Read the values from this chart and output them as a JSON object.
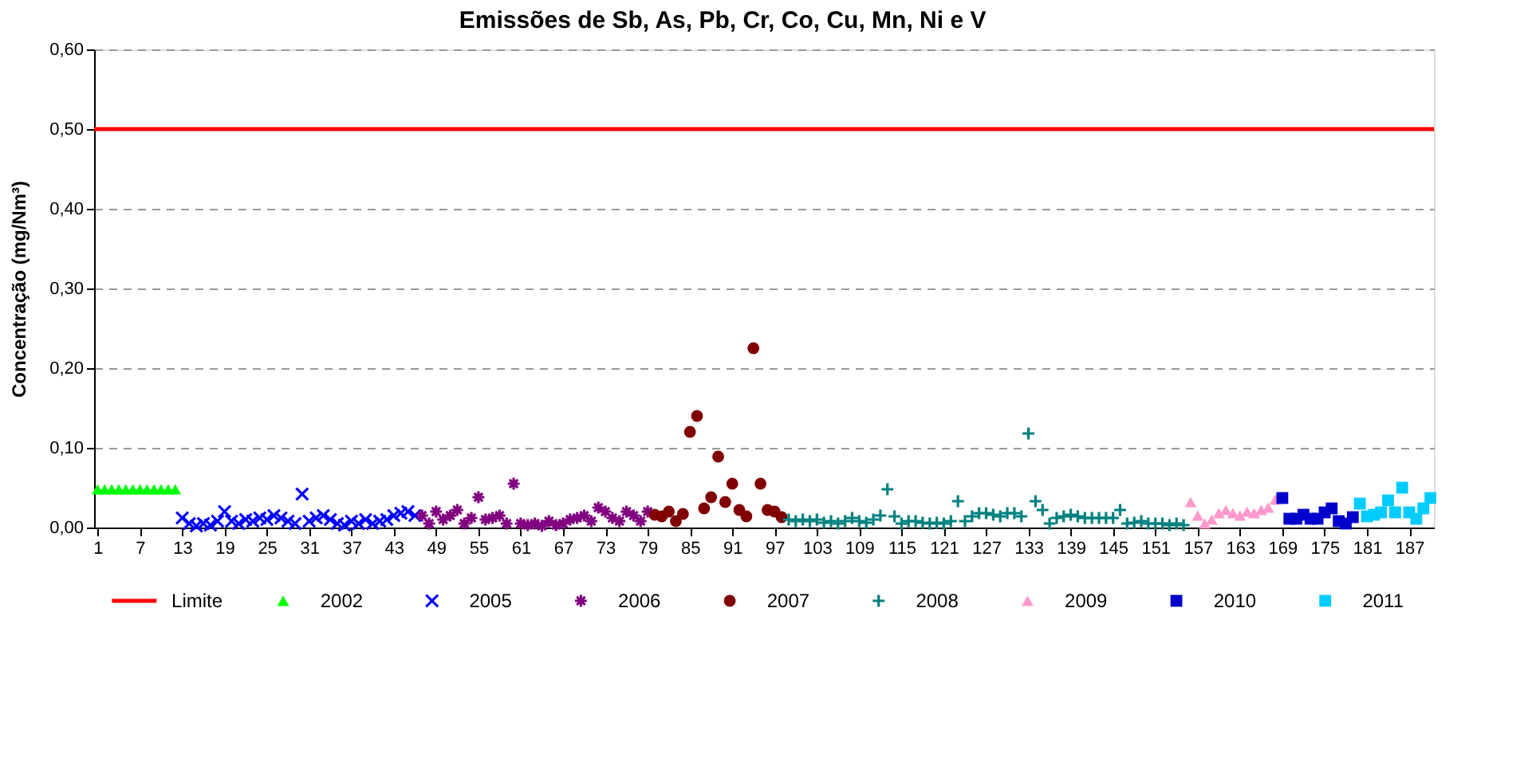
{
  "chart_data": {
    "type": "scatter",
    "title": "Emissões de Sb, As, Pb, Cr, Co, Cu, Mn, Ni e V",
    "ylabel": "Concentração (mg/Nm³)",
    "xlim": [
      0.5,
      190.5
    ],
    "xticks": [
      1,
      7,
      13,
      19,
      25,
      31,
      37,
      43,
      49,
      55,
      61,
      67,
      73,
      79,
      85,
      91,
      97,
      103,
      109,
      115,
      121,
      127,
      133,
      139,
      145,
      151,
      157,
      163,
      169,
      175,
      181,
      187
    ],
    "ylim": [
      0,
      0.6
    ],
    "yticks": [
      {
        "value": 0,
        "label": "0,00"
      },
      {
        "value": 0.1,
        "label": "0,10"
      },
      {
        "value": 0.2,
        "label": "0,20"
      },
      {
        "value": 0.3,
        "label": "0,30"
      },
      {
        "value": 0.4,
        "label": "0,40"
      },
      {
        "value": 0.5,
        "label": "0,50"
      },
      {
        "value": 0.6,
        "label": "0,60"
      }
    ],
    "grid": "y",
    "legend": "bottom",
    "series": [
      {
        "name": "Limite",
        "type": "line",
        "color": "#ff0000",
        "x": [
          0.5,
          190.5
        ],
        "values": [
          0.5,
          0.5
        ]
      },
      {
        "name": "2002",
        "color": "#00ff00",
        "marker": "triangle",
        "x": [
          1,
          2,
          3,
          4,
          5,
          6,
          7,
          8,
          9,
          10,
          11,
          12
        ],
        "values": [
          0.048,
          0.048,
          0.048,
          0.048,
          0.048,
          0.048,
          0.048,
          0.048,
          0.048,
          0.048,
          0.048,
          0.048
        ]
      },
      {
        "name": "2005",
        "color": "#0000ff",
        "marker": "x",
        "x": [
          13,
          14,
          15,
          16,
          17,
          18,
          19,
          20,
          21,
          22,
          23,
          24,
          25,
          26,
          27,
          28,
          29,
          30,
          31,
          32,
          33,
          34,
          35,
          36,
          37,
          38,
          39,
          40,
          41,
          42,
          43,
          44,
          45,
          46
        ],
        "values": [
          0.012,
          0.005,
          0.002,
          0.005,
          0.003,
          0.008,
          0.02,
          0.008,
          0.005,
          0.01,
          0.008,
          0.012,
          0.01,
          0.015,
          0.012,
          0.008,
          0.005,
          0.042,
          0.008,
          0.012,
          0.015,
          0.01,
          0.005,
          0.003,
          0.008,
          0.005,
          0.01,
          0.005,
          0.008,
          0.01,
          0.015,
          0.018,
          0.02,
          0.015
        ]
      },
      {
        "name": "2006",
        "color": "#800080",
        "marker": "cross",
        "x": [
          47,
          48,
          49,
          50,
          51,
          52,
          53,
          54,
          55,
          56,
          57,
          58,
          59,
          60,
          61,
          62,
          63,
          64,
          65,
          66,
          67,
          68,
          69,
          70,
          71,
          72,
          73,
          74,
          75,
          76,
          77,
          78,
          79
        ],
        "values": [
          0.015,
          0.005,
          0.02,
          0.01,
          0.015,
          0.022,
          0.005,
          0.012,
          0.038,
          0.01,
          0.012,
          0.015,
          0.005,
          0.055,
          0.005,
          0.003,
          0.005,
          0.002,
          0.008,
          0.003,
          0.005,
          0.01,
          0.012,
          0.015,
          0.008,
          0.025,
          0.02,
          0.012,
          0.008,
          0.02,
          0.015,
          0.008,
          0.02
        ]
      },
      {
        "name": "2007",
        "color": "#800000",
        "marker": "circle",
        "x": [
          80,
          81,
          82,
          83,
          84,
          85,
          86,
          87,
          88,
          89,
          90,
          91,
          92,
          93,
          94,
          95,
          96,
          97,
          98
        ],
        "values": [
          0.016,
          0.014,
          0.02,
          0.008,
          0.017,
          0.12,
          0.14,
          0.024,
          0.038,
          0.089,
          0.032,
          0.055,
          0.022,
          0.014,
          0.225,
          0.055,
          0.022,
          0.02,
          0.013
        ]
      },
      {
        "name": "2008",
        "color": "#008080",
        "marker": "plus",
        "x": [
          99,
          100,
          101,
          102,
          103,
          104,
          105,
          106,
          107,
          108,
          109,
          110,
          111,
          112,
          113,
          114,
          115,
          116,
          117,
          118,
          119,
          120,
          121,
          122,
          123,
          124,
          125,
          126,
          127,
          128,
          129,
          130,
          131,
          132,
          133,
          134,
          135,
          136,
          137,
          138,
          139,
          140,
          141,
          142,
          143,
          144,
          145,
          146,
          147,
          148,
          149,
          150,
          151,
          152,
          153,
          154,
          155
        ],
        "values": [
          0.01,
          0.008,
          0.01,
          0.008,
          0.01,
          0.006,
          0.008,
          0.005,
          0.008,
          0.012,
          0.008,
          0.006,
          0.01,
          0.015,
          0.048,
          0.014,
          0.005,
          0.008,
          0.008,
          0.006,
          0.005,
          0.006,
          0.005,
          0.008,
          0.033,
          0.008,
          0.014,
          0.018,
          0.018,
          0.016,
          0.014,
          0.018,
          0.018,
          0.014,
          0.118,
          0.033,
          0.022,
          0.005,
          0.012,
          0.014,
          0.016,
          0.014,
          0.012,
          0.012,
          0.012,
          0.012,
          0.012,
          0.022,
          0.005,
          0.006,
          0.008,
          0.005,
          0.005,
          0.005,
          0.003,
          0.005,
          0.003
        ]
      },
      {
        "name": "2009",
        "color": "#ff99cc",
        "marker": "triangle",
        "x": [
          156,
          157,
          158,
          159,
          160,
          161,
          162,
          163,
          164,
          165,
          166,
          167,
          168
        ],
        "values": [
          0.032,
          0.015,
          0.005,
          0.01,
          0.018,
          0.022,
          0.018,
          0.015,
          0.02,
          0.018,
          0.022,
          0.025,
          0.035
        ]
      },
      {
        "name": "2010",
        "color": "#0000cc",
        "marker": "square",
        "x": [
          169,
          170,
          171,
          172,
          173,
          174,
          175,
          176,
          177,
          178,
          179
        ],
        "values": [
          0.037,
          0.011,
          0.011,
          0.016,
          0.011,
          0.011,
          0.019,
          0.024,
          0.008,
          0.005,
          0.013
        ]
      },
      {
        "name": "2011",
        "color": "#00ccff",
        "marker": "square",
        "x": [
          180,
          181,
          182,
          183,
          184,
          185,
          186,
          187,
          188,
          189,
          190
        ],
        "values": [
          0.03,
          0.014,
          0.016,
          0.019,
          0.034,
          0.019,
          0.05,
          0.019,
          0.011,
          0.024,
          0.037
        ]
      }
    ]
  }
}
